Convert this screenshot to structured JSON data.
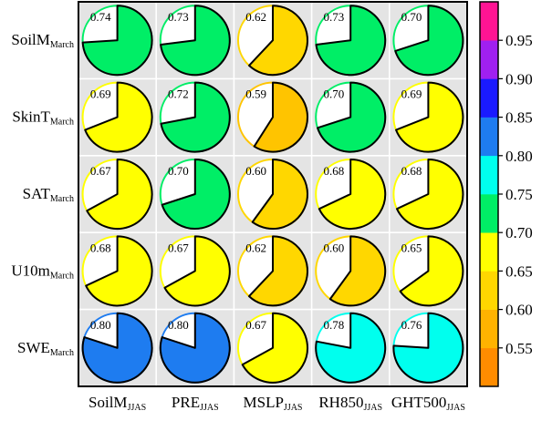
{
  "chart_data": {
    "type": "pie-matrix",
    "rows": [
      {
        "main": "SoilM",
        "sub": "March"
      },
      {
        "main": "SkinT",
        "sub": "March"
      },
      {
        "main": "SAT",
        "sub": "March"
      },
      {
        "main": "U10m",
        "sub": "March"
      },
      {
        "main": "SWE",
        "sub": "March"
      }
    ],
    "columns": [
      {
        "main": "SoilM",
        "sub": "JJAS"
      },
      {
        "main": "PRE",
        "sub": "JJAS"
      },
      {
        "main": "MSLP",
        "sub": "JJAS"
      },
      {
        "main": "RH850",
        "sub": "JJAS"
      },
      {
        "main": "GHT500",
        "sub": "JJAS"
      }
    ],
    "values": [
      [
        0.74,
        0.73,
        0.62,
        0.73,
        0.7
      ],
      [
        0.69,
        0.72,
        0.59,
        0.7,
        0.69
      ],
      [
        0.67,
        0.7,
        0.6,
        0.68,
        0.68
      ],
      [
        0.68,
        0.67,
        0.62,
        0.6,
        0.65
      ],
      [
        0.8,
        0.8,
        0.67,
        0.78,
        0.76
      ]
    ],
    "labels": [
      [
        "0.74",
        "0.73",
        "0.62",
        "0.73",
        "0.70"
      ],
      [
        "0.69",
        "0.72",
        "0.59",
        "0.70",
        "0.69"
      ],
      [
        "0.67",
        "0.70",
        "0.60",
        "0.68",
        "0.68"
      ],
      [
        "0.68",
        "0.67",
        "0.62",
        "0.60",
        "0.65"
      ],
      [
        "0.80",
        "0.80",
        "0.67",
        "0.78",
        "0.76"
      ]
    ],
    "colorbar": {
      "boundaries": [
        0.5,
        0.55,
        0.6,
        0.65,
        0.7,
        0.75,
        0.8,
        0.85,
        0.9,
        0.95,
        1.0
      ],
      "colors": [
        "#ff8c00",
        "#ffb300",
        "#ffd700",
        "#ffff00",
        "#00ee66",
        "#00ffee",
        "#1e7cf0",
        "#1a1aff",
        "#a020f0",
        "#ff1493"
      ],
      "fine_colors": [
        "#ff8c00",
        "#ffa500",
        "#ffb300",
        "#ffc400",
        "#ffd700",
        "#ffeb00",
        "#ffff00",
        "#ffff00",
        "#00ee66",
        "#00ee66",
        "#00ffee",
        "#00ffee",
        "#1e7cf0",
        "#1e7cf0",
        "#1a1aff",
        "#1a1aff",
        "#a020f0",
        "#a020f0",
        "#ff1493",
        "#ff1493"
      ],
      "tick_labels": [
        "0.55",
        "0.60",
        "0.65",
        "0.70",
        "0.75",
        "0.80",
        "0.85",
        "0.90",
        "0.95"
      ],
      "tick_values": [
        0.55,
        0.6,
        0.65,
        0.7,
        0.75,
        0.8,
        0.85,
        0.9,
        0.95
      ]
    }
  }
}
